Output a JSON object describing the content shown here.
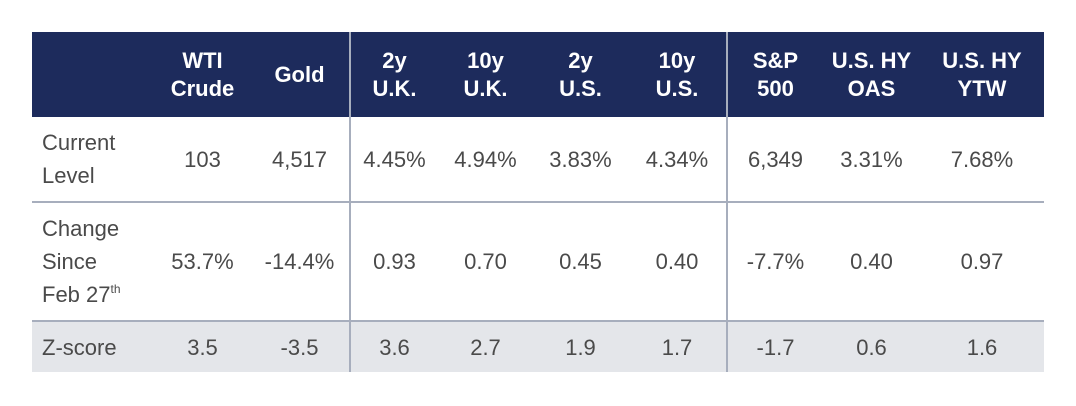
{
  "table": {
    "columns": [
      [
        "WTI",
        "Crude"
      ],
      [
        "Gold"
      ],
      [
        "2y",
        "U.K."
      ],
      [
        "10y",
        "U.K."
      ],
      [
        "2y",
        "U.S."
      ],
      [
        "10y",
        "U.S."
      ],
      [
        "S&P",
        "500"
      ],
      [
        "U.S. HY",
        "OAS"
      ],
      [
        "U.S. HY",
        "YTW"
      ]
    ],
    "rows": [
      {
        "label": {
          "lines": [
            "Current",
            "Level"
          ]
        },
        "values": [
          "103",
          "4,517",
          "4.45%",
          "4.94%",
          "3.83%",
          "4.34%",
          "6,349",
          "3.31%",
          "7.68%"
        ]
      },
      {
        "label": {
          "lines": [
            "Change",
            "Since",
            "Feb 27"
          ],
          "sup": "th"
        },
        "values": [
          "53.7%",
          "-14.4%",
          "0.93",
          "0.70",
          "0.45",
          "0.40",
          "-7.7%",
          "0.40",
          "0.97"
        ]
      },
      {
        "label": {
          "lines": [
            "Z-score"
          ]
        },
        "values": [
          "3.5",
          "-3.5",
          "3.6",
          "2.7",
          "1.9",
          "1.7",
          "-1.7",
          "0.6",
          "1.6"
        ]
      }
    ]
  }
}
